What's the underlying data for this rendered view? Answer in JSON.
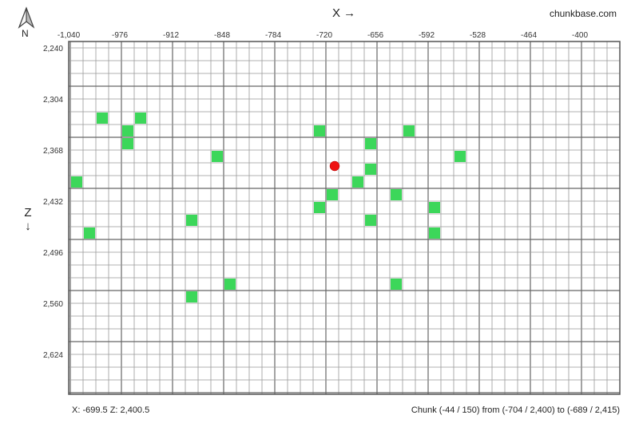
{
  "brand": "chunkbase.com",
  "axes": {
    "x_label": "X →",
    "z_label_top": "Z",
    "z_label_arrow": "↓",
    "x_ticks": [
      "-1,040",
      "-976",
      "-912",
      "-848",
      "-784",
      "-720",
      "-656",
      "-592",
      "-528",
      "-464",
      "-400"
    ],
    "z_ticks": [
      "2,240",
      "2,304",
      "2,368",
      "2,432",
      "2,496",
      "2,560",
      "2,624"
    ]
  },
  "compass": {
    "label": "N"
  },
  "status": {
    "coords": "X: -699.5  Z: 2,400.5",
    "chunk": "Chunk (-44 / 150) from (-704 / 2,400) to (-689 / 2,415)"
  },
  "map": {
    "grid_color": "#999999",
    "cell_color": "#3cd75a",
    "marker_color": "#ee1111",
    "marker_chunk": [
      -44,
      150
    ],
    "highlighted_chunks": [
      [
        -59,
        146
      ],
      [
        -62,
        146
      ],
      [
        -60,
        147
      ],
      [
        -60,
        148
      ],
      [
        -41,
        148
      ],
      [
        -45,
        147
      ],
      [
        -38,
        147
      ],
      [
        -41,
        150
      ],
      [
        -42,
        151
      ],
      [
        -39,
        152
      ],
      [
        -34,
        149
      ],
      [
        -53,
        149
      ],
      [
        -64,
        151
      ],
      [
        -44,
        152
      ],
      [
        -45,
        153
      ],
      [
        -36,
        153
      ],
      [
        -41,
        154
      ],
      [
        -63,
        155
      ],
      [
        -55,
        160
      ],
      [
        -52,
        159
      ],
      [
        -39,
        159
      ],
      [
        -36,
        155
      ],
      [
        -55,
        154
      ]
    ]
  }
}
